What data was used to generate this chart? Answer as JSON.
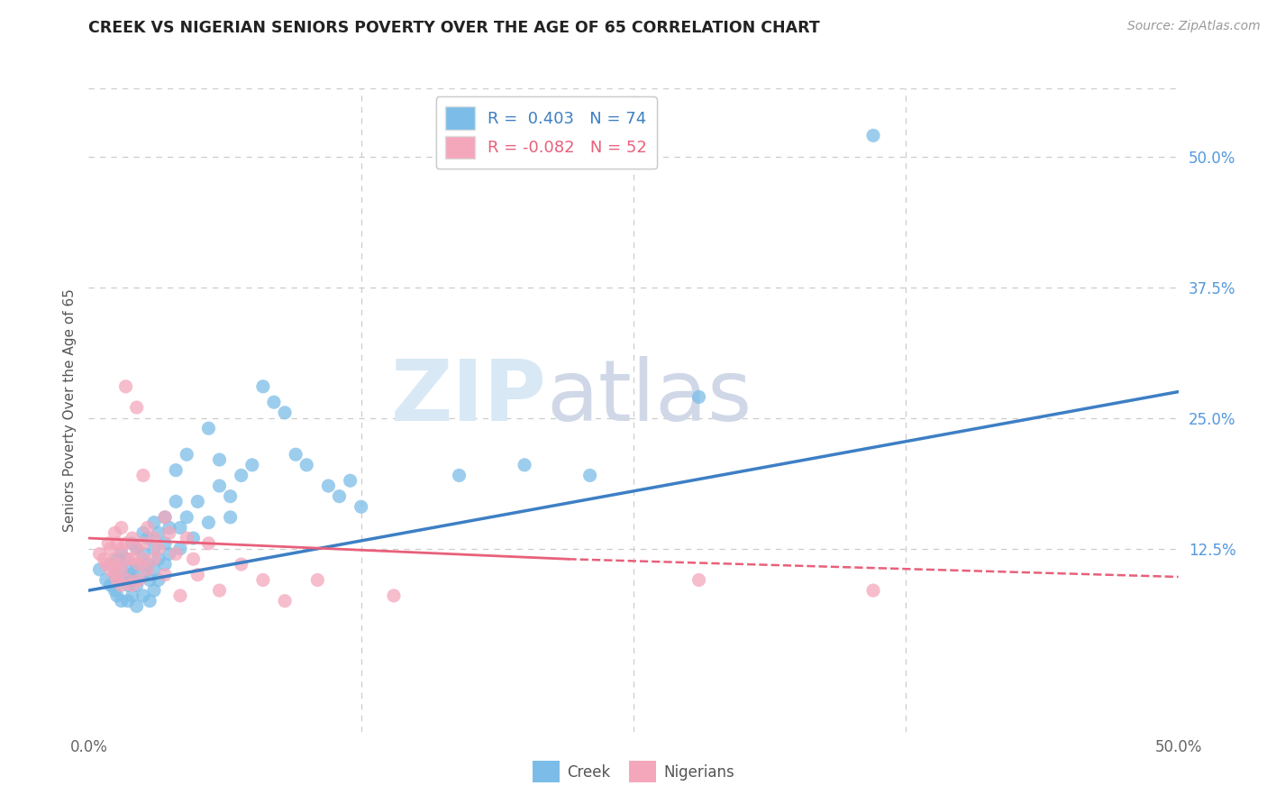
{
  "title": "CREEK VS NIGERIAN SENIORS POVERTY OVER THE AGE OF 65 CORRELATION CHART",
  "source": "Source: ZipAtlas.com",
  "ylabel": "Seniors Poverty Over the Age of 65",
  "xlim": [
    0.0,
    0.5
  ],
  "ylim": [
    -0.05,
    0.565
  ],
  "creek_color": "#7bbde8",
  "nigerian_color": "#f4a7bb",
  "creek_line_color": "#3d7fc4",
  "nigerian_line_color": "#e8607a",
  "creek_R": 0.403,
  "creek_N": 74,
  "nigerian_R": -0.082,
  "nigerian_N": 52,
  "watermark_zip": "ZIP",
  "watermark_atlas": "atlas",
  "creek_scatter": [
    [
      0.005,
      0.105
    ],
    [
      0.008,
      0.095
    ],
    [
      0.01,
      0.11
    ],
    [
      0.01,
      0.09
    ],
    [
      0.012,
      0.085
    ],
    [
      0.012,
      0.1
    ],
    [
      0.013,
      0.115
    ],
    [
      0.013,
      0.08
    ],
    [
      0.015,
      0.12
    ],
    [
      0.015,
      0.095
    ],
    [
      0.015,
      0.105
    ],
    [
      0.015,
      0.075
    ],
    [
      0.017,
      0.115
    ],
    [
      0.018,
      0.09
    ],
    [
      0.018,
      0.075
    ],
    [
      0.019,
      0.1
    ],
    [
      0.02,
      0.13
    ],
    [
      0.02,
      0.105
    ],
    [
      0.02,
      0.095
    ],
    [
      0.02,
      0.08
    ],
    [
      0.022,
      0.125
    ],
    [
      0.022,
      0.11
    ],
    [
      0.022,
      0.09
    ],
    [
      0.022,
      0.07
    ],
    [
      0.025,
      0.14
    ],
    [
      0.025,
      0.12
    ],
    [
      0.025,
      0.1
    ],
    [
      0.025,
      0.08
    ],
    [
      0.027,
      0.135
    ],
    [
      0.027,
      0.11
    ],
    [
      0.028,
      0.095
    ],
    [
      0.028,
      0.075
    ],
    [
      0.03,
      0.15
    ],
    [
      0.03,
      0.125
    ],
    [
      0.03,
      0.105
    ],
    [
      0.03,
      0.085
    ],
    [
      0.032,
      0.14
    ],
    [
      0.032,
      0.115
    ],
    [
      0.032,
      0.095
    ],
    [
      0.035,
      0.155
    ],
    [
      0.035,
      0.13
    ],
    [
      0.035,
      0.11
    ],
    [
      0.037,
      0.145
    ],
    [
      0.037,
      0.12
    ],
    [
      0.04,
      0.2
    ],
    [
      0.04,
      0.17
    ],
    [
      0.042,
      0.145
    ],
    [
      0.042,
      0.125
    ],
    [
      0.045,
      0.215
    ],
    [
      0.045,
      0.155
    ],
    [
      0.048,
      0.135
    ],
    [
      0.05,
      0.17
    ],
    [
      0.055,
      0.24
    ],
    [
      0.055,
      0.15
    ],
    [
      0.06,
      0.185
    ],
    [
      0.06,
      0.21
    ],
    [
      0.065,
      0.175
    ],
    [
      0.065,
      0.155
    ],
    [
      0.07,
      0.195
    ],
    [
      0.075,
      0.205
    ],
    [
      0.08,
      0.28
    ],
    [
      0.085,
      0.265
    ],
    [
      0.09,
      0.255
    ],
    [
      0.095,
      0.215
    ],
    [
      0.1,
      0.205
    ],
    [
      0.11,
      0.185
    ],
    [
      0.115,
      0.175
    ],
    [
      0.12,
      0.19
    ],
    [
      0.125,
      0.165
    ],
    [
      0.17,
      0.195
    ],
    [
      0.2,
      0.205
    ],
    [
      0.23,
      0.195
    ],
    [
      0.28,
      0.27
    ],
    [
      0.36,
      0.52
    ]
  ],
  "nigerian_scatter": [
    [
      0.005,
      0.12
    ],
    [
      0.007,
      0.115
    ],
    [
      0.008,
      0.11
    ],
    [
      0.009,
      0.13
    ],
    [
      0.01,
      0.125
    ],
    [
      0.01,
      0.105
    ],
    [
      0.012,
      0.14
    ],
    [
      0.012,
      0.115
    ],
    [
      0.012,
      0.1
    ],
    [
      0.013,
      0.13
    ],
    [
      0.013,
      0.11
    ],
    [
      0.013,
      0.095
    ],
    [
      0.015,
      0.145
    ],
    [
      0.015,
      0.125
    ],
    [
      0.015,
      0.105
    ],
    [
      0.015,
      0.09
    ],
    [
      0.017,
      0.28
    ],
    [
      0.017,
      0.13
    ],
    [
      0.018,
      0.115
    ],
    [
      0.018,
      0.095
    ],
    [
      0.02,
      0.135
    ],
    [
      0.02,
      0.115
    ],
    [
      0.02,
      0.09
    ],
    [
      0.022,
      0.26
    ],
    [
      0.022,
      0.125
    ],
    [
      0.023,
      0.11
    ],
    [
      0.023,
      0.095
    ],
    [
      0.025,
      0.195
    ],
    [
      0.025,
      0.13
    ],
    [
      0.025,
      0.115
    ],
    [
      0.027,
      0.145
    ],
    [
      0.027,
      0.105
    ],
    [
      0.03,
      0.135
    ],
    [
      0.03,
      0.115
    ],
    [
      0.032,
      0.125
    ],
    [
      0.035,
      0.155
    ],
    [
      0.035,
      0.1
    ],
    [
      0.037,
      0.14
    ],
    [
      0.04,
      0.12
    ],
    [
      0.042,
      0.08
    ],
    [
      0.045,
      0.135
    ],
    [
      0.048,
      0.115
    ],
    [
      0.05,
      0.1
    ],
    [
      0.055,
      0.13
    ],
    [
      0.06,
      0.085
    ],
    [
      0.07,
      0.11
    ],
    [
      0.08,
      0.095
    ],
    [
      0.09,
      0.075
    ],
    [
      0.105,
      0.095
    ],
    [
      0.14,
      0.08
    ],
    [
      0.28,
      0.095
    ],
    [
      0.36,
      0.085
    ]
  ]
}
